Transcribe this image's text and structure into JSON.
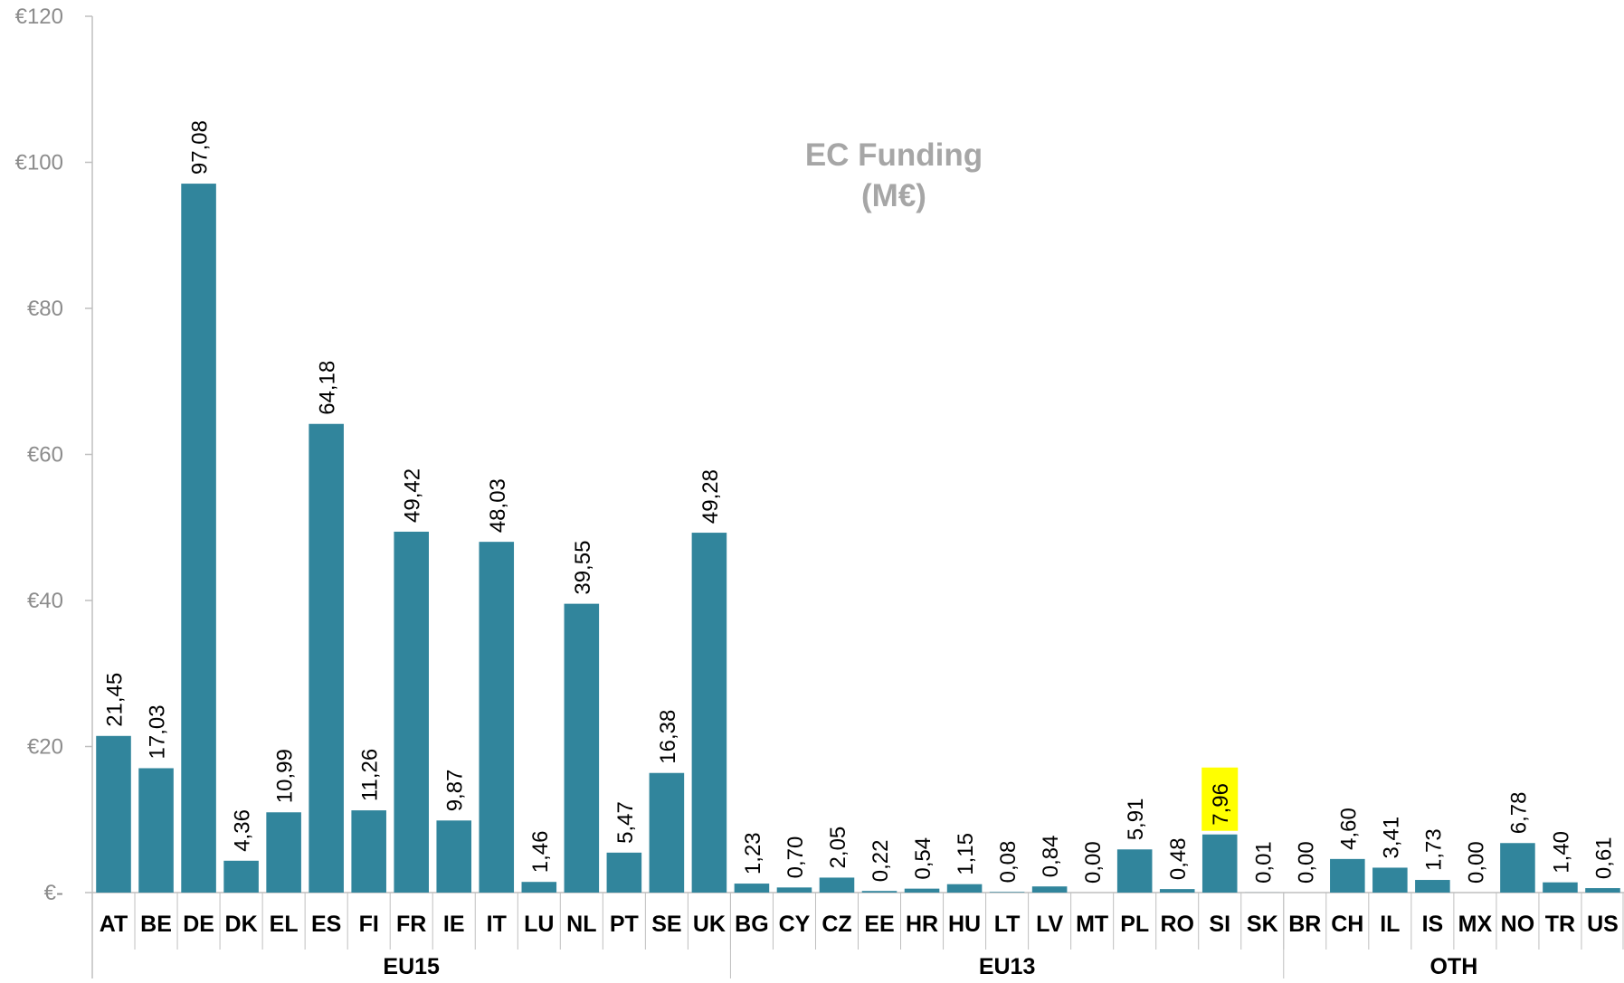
{
  "chart_data": {
    "type": "bar",
    "title": "EC Funding",
    "subtitle": "(M€)",
    "ylim": [
      0,
      120
    ],
    "yticks": [
      {
        "value": 0,
        "label": "€-"
      },
      {
        "value": 20,
        "label": "€20"
      },
      {
        "value": 40,
        "label": "€40"
      },
      {
        "value": 60,
        "label": "€60"
      },
      {
        "value": 80,
        "label": "€80"
      },
      {
        "value": 100,
        "label": "€100"
      },
      {
        "value": 120,
        "label": "€120"
      }
    ],
    "categories": [
      "AT",
      "BE",
      "DE",
      "DK",
      "EL",
      "ES",
      "FI",
      "FR",
      "IE",
      "IT",
      "LU",
      "NL",
      "PT",
      "SE",
      "UK",
      "BG",
      "CY",
      "CZ",
      "EE",
      "HR",
      "HU",
      "LT",
      "LV",
      "MT",
      "PL",
      "RO",
      "SI",
      "SK",
      "BR",
      "CH",
      "IL",
      "IS",
      "MX",
      "NO",
      "TR",
      "US"
    ],
    "values": [
      21.45,
      17.03,
      97.08,
      4.36,
      10.99,
      64.18,
      11.26,
      49.42,
      9.87,
      48.03,
      1.46,
      39.55,
      5.47,
      16.38,
      49.28,
      1.23,
      0.7,
      2.05,
      0.22,
      0.54,
      1.15,
      0.08,
      0.84,
      0.0,
      5.91,
      0.48,
      7.96,
      0.01,
      0.0,
      4.6,
      3.41,
      1.73,
      0.0,
      6.78,
      1.4,
      0.61
    ],
    "value_labels": [
      "21,45",
      "17,03",
      "97,08",
      "4,36",
      "10,99",
      "64,18",
      "11,26",
      "49,42",
      "9,87",
      "48,03",
      "1,46",
      "39,55",
      "5,47",
      "16,38",
      "49,28",
      "1,23",
      "0,70",
      "2,05",
      "0,22",
      "0,54",
      "1,15",
      "0,08",
      "0,84",
      "0,00",
      "5,91",
      "0,48",
      "7,96",
      "0,01",
      "0,00",
      "4,60",
      "3,41",
      "1,73",
      "0,00",
      "6,78",
      "1,40",
      "0,61"
    ],
    "groups": [
      {
        "name": "EU15",
        "count": 15
      },
      {
        "name": "EU13",
        "count": 13
      },
      {
        "name": "OTH",
        "count": 8
      }
    ],
    "highlighted_category": "SI",
    "highlight_color": "#ffff00",
    "bar_color": "#31859c",
    "axis_color": "#bfbfbf",
    "grid": false,
    "legend": "none"
  }
}
